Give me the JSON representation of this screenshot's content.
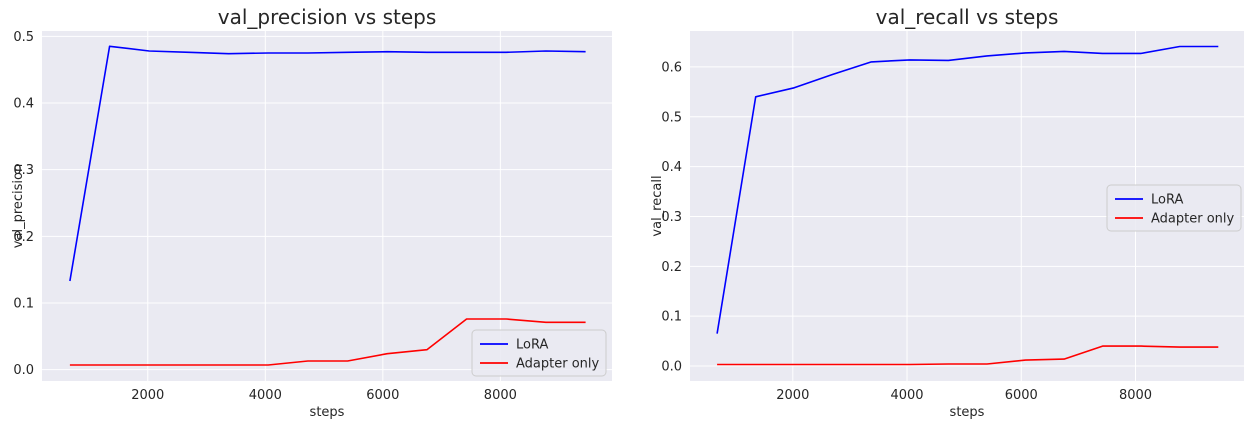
{
  "charts": [
    {
      "type": "line",
      "title": "val_precision vs steps",
      "xlabel": "steps",
      "ylabel": "val_precision",
      "xlim": [
        200,
        9900
      ],
      "ylim": [
        -0.017,
        0.508
      ],
      "xticks": [
        2000,
        4000,
        6000,
        8000
      ],
      "xtick_labels": [
        "2000",
        "4000",
        "6000",
        "8000"
      ],
      "yticks": [
        0.0,
        0.1,
        0.2,
        0.3,
        0.4,
        0.5
      ],
      "ytick_labels": [
        "0.0",
        "0.1",
        "0.2",
        "0.3",
        "0.4",
        "0.5"
      ],
      "grid": true,
      "legend_position": "lower-right",
      "series": [
        {
          "name": "LoRA",
          "color": "#0000ff",
          "x": [
            675,
            1350,
            2025,
            2700,
            3375,
            4050,
            4725,
            5400,
            6075,
            6750,
            7425,
            8100,
            8775,
            9450
          ],
          "y": [
            0.133,
            0.485,
            0.478,
            0.476,
            0.474,
            0.475,
            0.475,
            0.476,
            0.477,
            0.476,
            0.476,
            0.476,
            0.478,
            0.477
          ]
        },
        {
          "name": "Adapter only",
          "color": "#ff0000",
          "x": [
            675,
            1350,
            2025,
            2700,
            3375,
            4050,
            4725,
            5400,
            6075,
            6750,
            7425,
            8100,
            8775,
            9450
          ],
          "y": [
            0.007,
            0.007,
            0.007,
            0.007,
            0.007,
            0.007,
            0.013,
            0.013,
            0.024,
            0.03,
            0.076,
            0.076,
            0.071,
            0.071
          ]
        }
      ]
    },
    {
      "type": "line",
      "title": "val_recall vs steps",
      "xlabel": "steps",
      "ylabel": "val_recall",
      "xlim": [
        200,
        9900
      ],
      "ylim": [
        -0.03,
        0.672
      ],
      "xticks": [
        2000,
        4000,
        6000,
        8000
      ],
      "xtick_labels": [
        "2000",
        "4000",
        "6000",
        "8000"
      ],
      "yticks": [
        0.0,
        0.1,
        0.2,
        0.3,
        0.4,
        0.5,
        0.6
      ],
      "ytick_labels": [
        "0.0",
        "0.1",
        "0.2",
        "0.3",
        "0.4",
        "0.5",
        "0.6"
      ],
      "grid": true,
      "legend_position": "center-right",
      "series": [
        {
          "name": "LoRA",
          "color": "#0000ff",
          "x": [
            675,
            1350,
            2025,
            2700,
            3375,
            4050,
            4725,
            5400,
            6075,
            6750,
            7425,
            8100,
            8775,
            9450
          ],
          "y": [
            0.065,
            0.54,
            0.558,
            0.585,
            0.61,
            0.614,
            0.613,
            0.622,
            0.628,
            0.631,
            0.627,
            0.627,
            0.641,
            0.641
          ]
        },
        {
          "name": "Adapter only",
          "color": "#ff0000",
          "x": [
            675,
            1350,
            2025,
            2700,
            3375,
            4050,
            4725,
            5400,
            6075,
            6750,
            7425,
            8100,
            8775,
            9450
          ],
          "y": [
            0.003,
            0.003,
            0.003,
            0.003,
            0.003,
            0.003,
            0.004,
            0.004,
            0.012,
            0.014,
            0.04,
            0.04,
            0.038,
            0.038
          ]
        }
      ]
    }
  ],
  "style": {
    "axes_background": "#eaeaf2",
    "grid_color": "#ffffff",
    "text_color": "#262626",
    "legend_background": "#eaeaf2",
    "legend_border": "#cccccc"
  }
}
